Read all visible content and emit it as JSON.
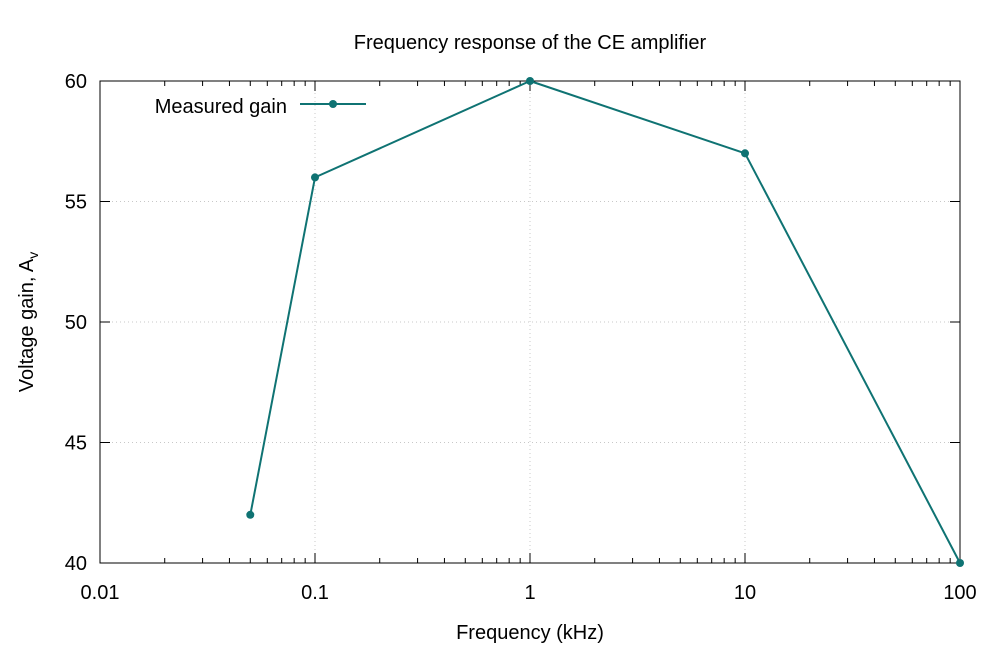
{
  "chart_data": {
    "type": "line",
    "title": "Frequency response of the CE amplifier",
    "xlabel": "Frequency (kHz)",
    "ylabel_main": "Voltage gain, A",
    "ylabel_sub": "v",
    "x_scale": "log",
    "xlim": [
      0.01,
      100
    ],
    "ylim": [
      40,
      60
    ],
    "x_ticks": [
      0.01,
      0.1,
      1,
      10,
      100
    ],
    "x_tick_labels": [
      "0.01",
      "0.1",
      "1",
      "10",
      "100"
    ],
    "y_ticks": [
      40,
      45,
      50,
      55,
      60
    ],
    "y_tick_labels": [
      "40",
      "45",
      "50",
      "55",
      "60"
    ],
    "grid": true,
    "legend_position": "top-left",
    "series": [
      {
        "name": "Measured gain",
        "color": "#0f7373",
        "marker": "circle",
        "x": [
          0.05,
          0.1,
          1,
          10,
          100
        ],
        "y": [
          42,
          56,
          60,
          57,
          40
        ]
      }
    ]
  }
}
